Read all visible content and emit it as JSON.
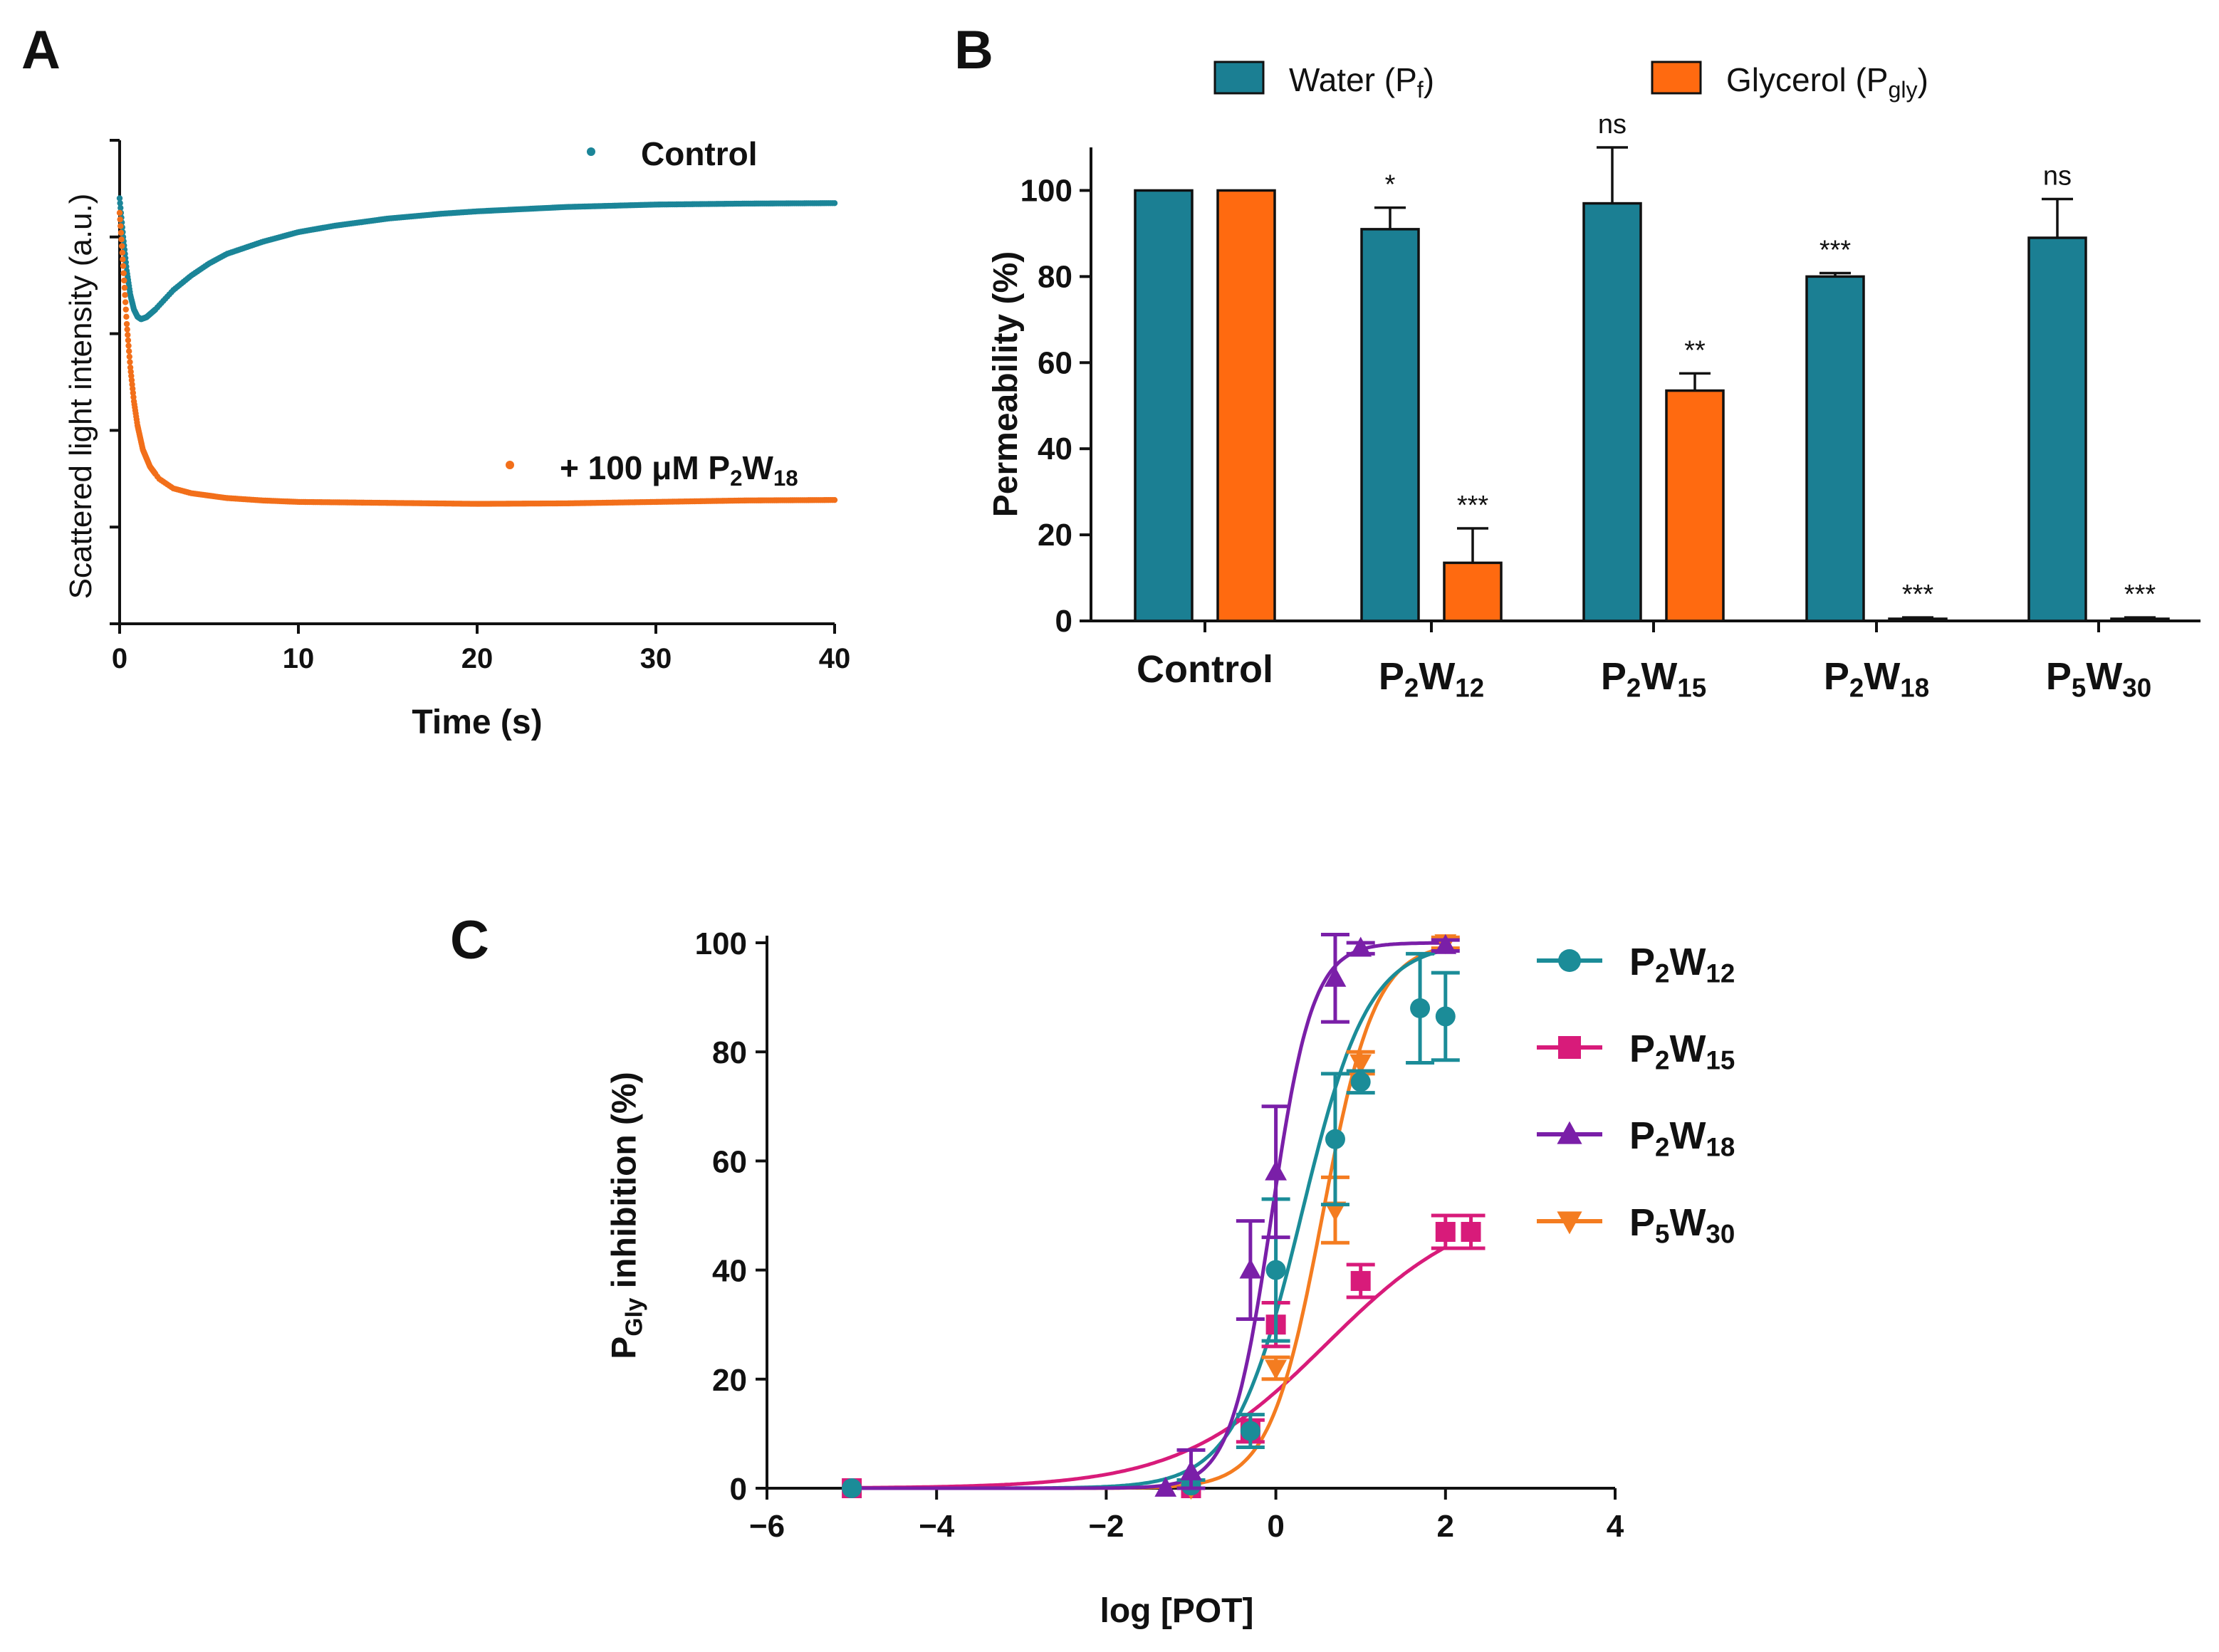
{
  "panels": {
    "a": {
      "letter": "A",
      "chart_data": {
        "type": "scatter",
        "title": "",
        "xlabel": "Time (s)",
        "ylabel": "Scattered light intensity (a.u.)",
        "xlim": [
          0,
          40
        ],
        "ylim": [
          0,
          1
        ],
        "xticks": [
          "0",
          "10",
          "20",
          "30",
          "40"
        ],
        "series": [
          {
            "name": "Control",
            "color": "#1b8598",
            "x": [
              0,
              0.2,
              0.4,
              0.6,
              0.8,
              1.0,
              1.2,
              1.5,
              2,
              3,
              4,
              5,
              6,
              8,
              10,
              12,
              15,
              18,
              20,
              25,
              30,
              35,
              40
            ],
            "y": [
              0.88,
              0.8,
              0.73,
              0.68,
              0.65,
              0.635,
              0.63,
              0.634,
              0.65,
              0.69,
              0.72,
              0.745,
              0.765,
              0.79,
              0.81,
              0.823,
              0.838,
              0.848,
              0.853,
              0.862,
              0.867,
              0.869,
              0.87
            ]
          },
          {
            "name": "+ 100 μM P2W18",
            "label_base": "+ 100 μM P",
            "label_sub1": "2",
            "label_mid": "W",
            "label_sub2": "18",
            "color": "#f26f1a",
            "x": [
              0,
              0.2,
              0.4,
              0.6,
              0.8,
              1.0,
              1.3,
              1.7,
              2.2,
              3,
              4,
              6,
              8,
              10,
              15,
              20,
              25,
              30,
              35,
              40
            ],
            "y": [
              0.85,
              0.74,
              0.62,
              0.53,
              0.46,
              0.41,
              0.36,
              0.325,
              0.3,
              0.28,
              0.27,
              0.26,
              0.255,
              0.252,
              0.25,
              0.248,
              0.249,
              0.252,
              0.255,
              0.256
            ]
          }
        ]
      }
    },
    "b": {
      "letter": "B",
      "chart_data": {
        "type": "bar",
        "title": "",
        "xlabel": "",
        "ylabel": "Permeability (%)",
        "ylim": [
          0,
          110
        ],
        "yticks": [
          "0",
          "20",
          "40",
          "60",
          "80",
          "100"
        ],
        "categories": [
          {
            "name": "Control",
            "base": "Control",
            "sub1": "",
            "mid": "",
            "sub2": ""
          },
          {
            "name": "P2W12",
            "base": "P",
            "sub1": "2",
            "mid": "W",
            "sub2": "12"
          },
          {
            "name": "P2W15",
            "base": "P",
            "sub1": "2",
            "mid": "W",
            "sub2": "15"
          },
          {
            "name": "P2W18",
            "base": "P",
            "sub1": "2",
            "mid": "W",
            "sub2": "18"
          },
          {
            "name": "P5W30",
            "base": "P",
            "sub1": "5",
            "mid": "W",
            "sub2": "30"
          }
        ],
        "series": [
          {
            "name": "Water (Pf)",
            "label_base": "Water (P",
            "label_sub": "f",
            "label_end": ")",
            "color": "#1b7f93",
            "values": [
              100,
              91,
              97,
              80,
              89
            ],
            "errors": [
              0,
              5,
              13,
              0.8,
              9
            ],
            "significance": [
              "",
              "*",
              "ns",
              "***",
              "ns"
            ]
          },
          {
            "name": "Glycerol (Pgly)",
            "label_base": "Glycerol (P",
            "label_sub": "gly",
            "label_end": ")",
            "color": "#ff6a10",
            "values": [
              100,
              13.5,
              53.5,
              0.5,
              0.5
            ],
            "errors": [
              0,
              8,
              4,
              0.3,
              0.3
            ],
            "significance": [
              "",
              "***",
              "**",
              "***",
              "***"
            ]
          }
        ]
      }
    },
    "c": {
      "letter": "C",
      "chart_data": {
        "type": "line",
        "title": "",
        "xlabel": "log [POT]",
        "ylabel": "PGly inhibition (%)",
        "ylabel_base": "P",
        "ylabel_sub": "Gly",
        "ylabel_rest": " inhibition (%)",
        "xlim": [
          -6,
          4
        ],
        "ylim": [
          0,
          100
        ],
        "xticks": [
          "-6",
          "-4",
          "-2",
          "0",
          "2",
          "4"
        ],
        "yticks": [
          "0",
          "20",
          "40",
          "60",
          "80",
          "100"
        ],
        "series": [
          {
            "name": "P2W12",
            "base": "P",
            "sub1": "2",
            "mid": "W",
            "sub2": "12",
            "color": "#1b8c98",
            "marker": "circle",
            "x": [
              -5,
              -1,
              -0.3,
              0,
              0.7,
              1,
              1.7,
              2
            ],
            "y": [
              0,
              0.5,
              10.5,
              40,
              64,
              74.5,
              88,
              86.5
            ],
            "err": [
              0,
              1,
              3,
              13,
              12,
              2,
              10,
              8
            ],
            "fit": {
              "bottom": 0,
              "top": 100,
              "logEC50": 0.3,
              "hill": 1.1
            }
          },
          {
            "name": "P2W15",
            "base": "P",
            "sub1": "2",
            "mid": "W",
            "sub2": "15",
            "color": "#d81b7a",
            "marker": "square",
            "x": [
              -5,
              -1,
              -0.3,
              0,
              1,
              2,
              2.3
            ],
            "y": [
              0,
              0,
              10.5,
              30,
              38,
              47,
              47
            ],
            "err": [
              0,
              0,
              2,
              4,
              3,
              3,
              3
            ],
            "fit": {
              "bottom": 0,
              "top": 53,
              "logEC50": 0.6,
              "hill": 0.5
            }
          },
          {
            "name": "P2W18",
            "base": "P",
            "sub1": "2",
            "mid": "W",
            "sub2": "18",
            "color": "#7a1fa8",
            "marker": "triangle-up",
            "x": [
              -1.3,
              -1,
              -0.3,
              0,
              0.7,
              1,
              2
            ],
            "y": [
              0,
              3,
              40,
              58,
              93.5,
              99,
              99.5
            ],
            "err": [
              0,
              4,
              9,
              12,
              8,
              1,
              1
            ],
            "fit": {
              "bottom": 0,
              "top": 100,
              "logEC50": -0.05,
              "hill": 1.8
            }
          },
          {
            "name": "P5W30",
            "base": "P",
            "sub1": "5",
            "mid": "W",
            "sub2": "30",
            "color": "#f47c20",
            "marker": "triangle-down",
            "x": [
              -1,
              0,
              0.7,
              1,
              2
            ],
            "y": [
              0,
              22,
              51,
              78,
              100
            ],
            "err": [
              0,
              2,
              6,
              2,
              1
            ],
            "fit": {
              "bottom": 0,
              "top": 100,
              "logEC50": 0.55,
              "hill": 1.4
            }
          }
        ]
      }
    }
  }
}
